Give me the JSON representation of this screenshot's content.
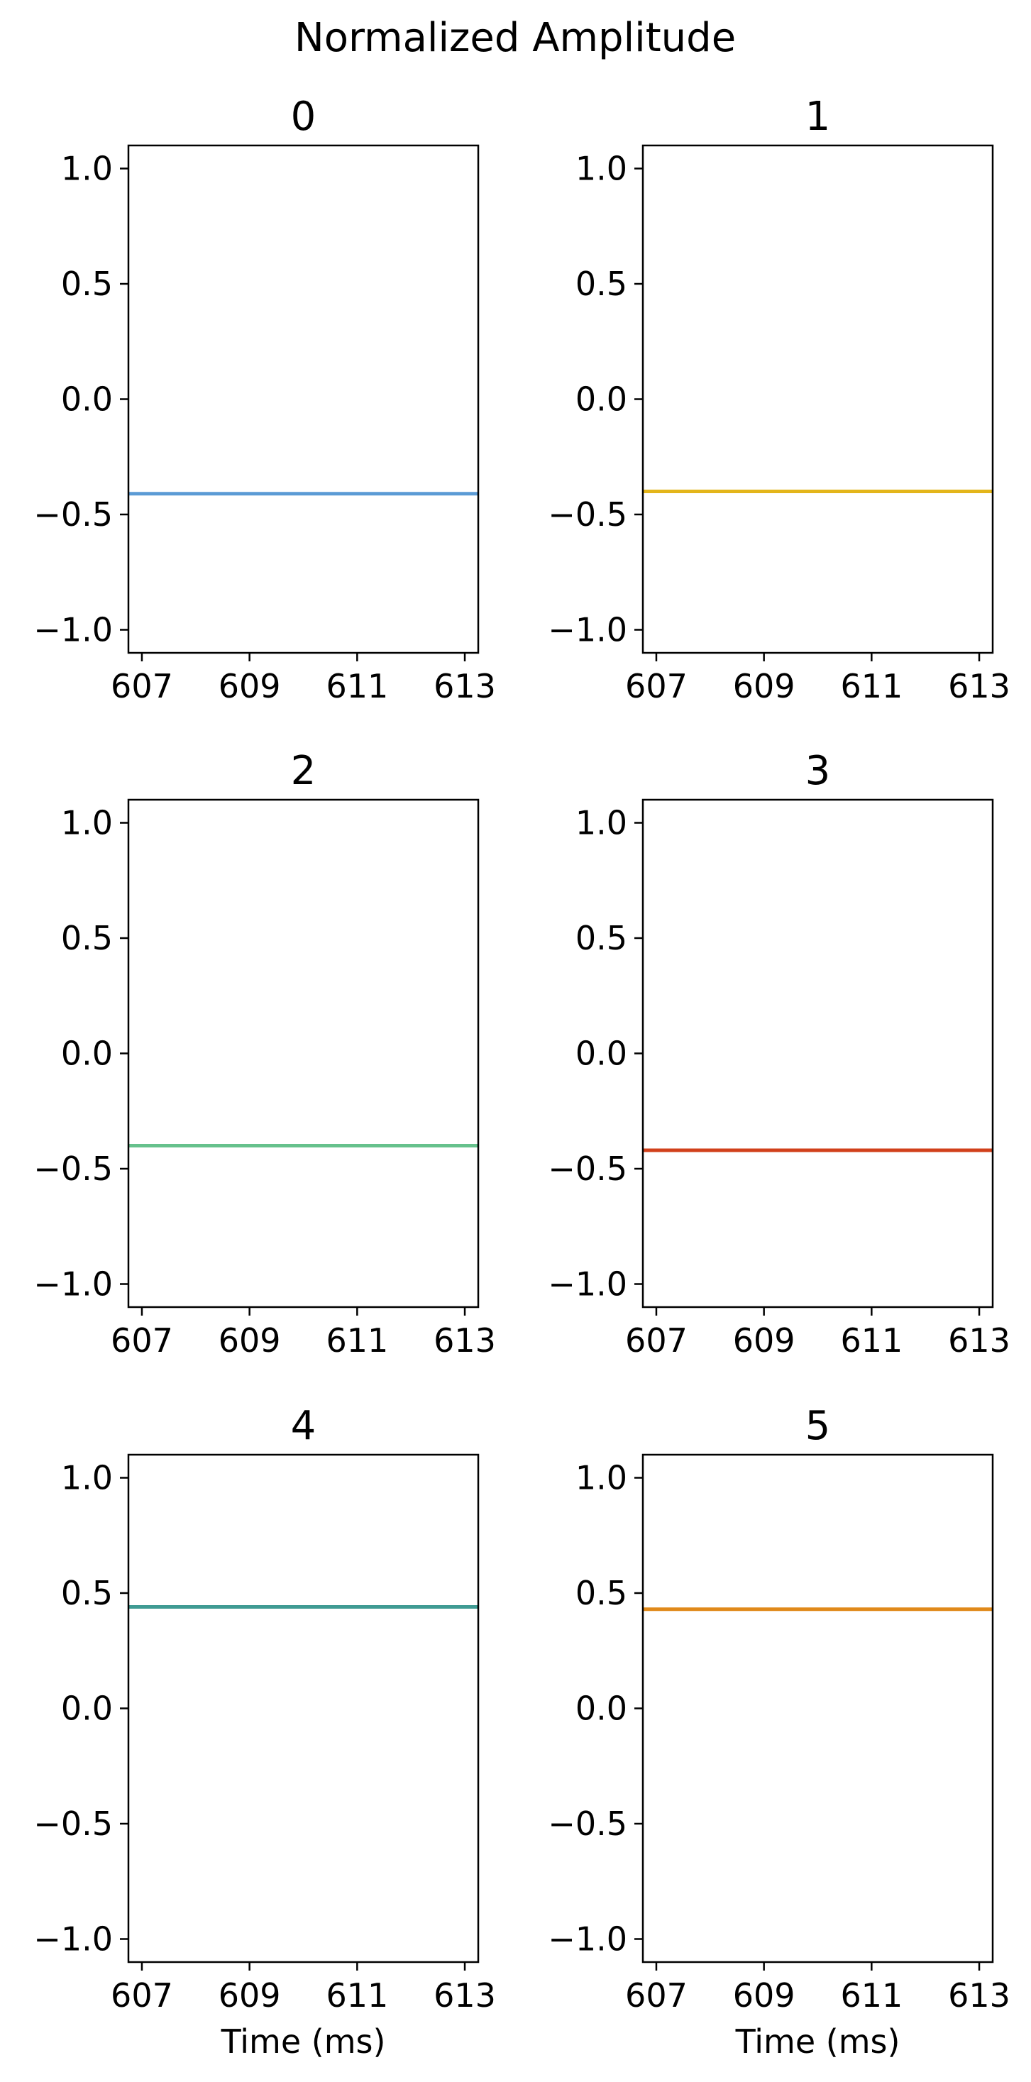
{
  "chart_data": {
    "type": "line",
    "title": "Normalized Amplitude",
    "xlim": [
      606.75,
      613.25
    ],
    "ylim": [
      -1.1,
      1.1
    ],
    "xticks": [
      607,
      609,
      611,
      613
    ],
    "xtick_labels": [
      "607",
      "609",
      "611",
      "613"
    ],
    "yticks": [
      1.0,
      0.5,
      0.0,
      -0.5,
      -1.0
    ],
    "ytick_labels": [
      "1.0",
      "0.5",
      "0.0",
      "−0.5",
      "−1.0"
    ],
    "grid": false,
    "layout": "3 rows x 2 columns",
    "panels": [
      {
        "title": "0",
        "xlabel": "",
        "color": "#5b9bd5",
        "x": [
          606.75,
          613.25
        ],
        "y": [
          -0.41,
          -0.41
        ]
      },
      {
        "title": "1",
        "xlabel": "",
        "color": "#e3b51a",
        "x": [
          606.75,
          613.25
        ],
        "y": [
          -0.4,
          -0.4
        ]
      },
      {
        "title": "2",
        "xlabel": "",
        "color": "#66c18c",
        "x": [
          606.75,
          613.25
        ],
        "y": [
          -0.4,
          -0.4
        ]
      },
      {
        "title": "3",
        "xlabel": "",
        "color": "#d1401b",
        "x": [
          606.75,
          613.25
        ],
        "y": [
          -0.42,
          -0.42
        ]
      },
      {
        "title": "4",
        "xlabel": "Time (ms)",
        "color": "#3f9b93",
        "x": [
          606.75,
          613.25
        ],
        "y": [
          0.44,
          0.44
        ]
      },
      {
        "title": "5",
        "xlabel": "Time (ms)",
        "color": "#e0891a",
        "x": [
          606.75,
          613.25
        ],
        "y": [
          0.43,
          0.43
        ]
      }
    ]
  }
}
